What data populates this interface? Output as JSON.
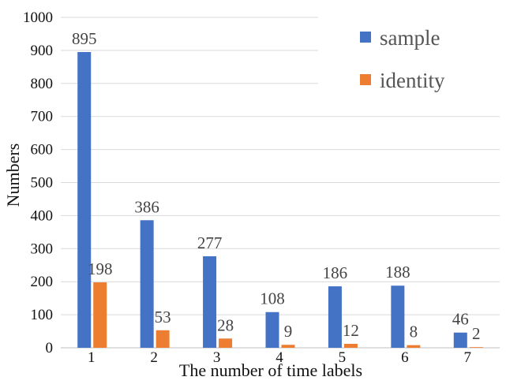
{
  "chart_data": {
    "type": "bar",
    "title": "",
    "xlabel": "The number of time labels",
    "ylabel": "Numbers",
    "categories": [
      "1",
      "2",
      "3",
      "4",
      "5",
      "6",
      "7"
    ],
    "series": [
      {
        "name": "sample",
        "values": [
          895,
          386,
          277,
          108,
          186,
          188,
          46
        ],
        "color": "#4472c4"
      },
      {
        "name": "identity",
        "values": [
          198,
          53,
          28,
          9,
          12,
          8,
          2
        ],
        "color": "#ed7d31"
      }
    ],
    "ylim": [
      0,
      1000
    ],
    "yticks": [
      0,
      100,
      200,
      300,
      400,
      500,
      600,
      700,
      800,
      900,
      1000
    ],
    "grid": true,
    "legend_position": "top-right",
    "data_labels": true
  }
}
